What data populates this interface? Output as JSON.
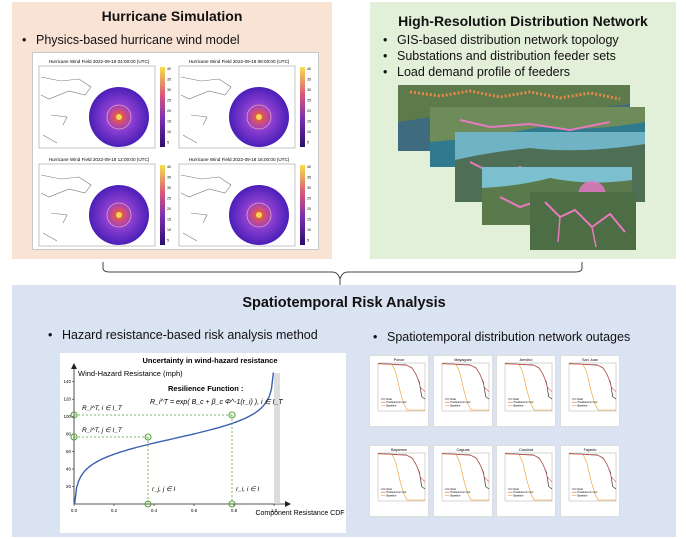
{
  "hurricane": {
    "title": "Hurricane Simulation",
    "bullet": "Physics-based hurricane wind model",
    "maps": [
      {
        "title": "Hurricane Wind Field 2022-09-18 04:00:00 (UTC)",
        "cbar_ticks": [
          "40",
          "35",
          "30",
          "25",
          "20",
          "15",
          "10",
          "5"
        ]
      },
      {
        "title": "Hurricane Wind Field 2022-09-18 08:00:00 (UTC)",
        "cbar_ticks": [
          "40",
          "35",
          "30",
          "25",
          "20",
          "15",
          "10",
          "5"
        ]
      },
      {
        "title": "Hurricane Wind Field 2022-09-18 12:00:00 (UTC)",
        "cbar_ticks": [
          "40",
          "35",
          "30",
          "25",
          "20",
          "15",
          "10",
          "5"
        ]
      },
      {
        "title": "Hurricane Wind Field 2022-09-18 16:00:00 (UTC)",
        "cbar_ticks": [
          "40",
          "35",
          "30",
          "25",
          "20",
          "15",
          "10",
          "5"
        ]
      }
    ]
  },
  "network": {
    "title": "High-Resolution Distribution Network",
    "bullets": [
      "GIS-based distribution network topology",
      "Substations and distribution feeder sets",
      "Load demand profile of feeders"
    ]
  },
  "risk": {
    "title": "Spatiotemporal Risk Analysis",
    "left_bullet": "Hazard resistance-based risk analysis method",
    "right_bullet": "Spatiotemporal distribution network outages",
    "curve_plot": {
      "title": "Uncertainty in wind-hazard resistance",
      "ylabel": "Wind-Hazard Resistance (mph)",
      "xlabel": "Component Resistance CDF",
      "xticks": [
        "0.0",
        "0.2",
        "0.4",
        "0.6",
        "0.8",
        "1.0"
      ],
      "yticks": [
        "20",
        "40",
        "60",
        "80",
        "100",
        "120",
        "140"
      ],
      "formula_title": "Resilience Function :",
      "formula": "R_i^T = exp( B_c + β_c Φ^-1(r_i) ), i ∈ I_T",
      "label_rt_upper": "R_i^T, i ∈ I_T",
      "label_rt_lower": "R_i^T, j ∈ I_T",
      "label_r_left": "r_j, j ∈ I",
      "label_r_right": "r_i, i ∈ I"
    },
    "outage_plots": [
      {
        "title": "Ponce",
        "legend": [
          "Real",
          "Predicted w/ Corr",
          "Baseline"
        ]
      },
      {
        "title": "Mayaguez",
        "legend": [
          "Real",
          "Predicted w/ Corr",
          "Baseline"
        ]
      },
      {
        "title": "Arecibo",
        "legend": [
          "Real",
          "Predicted w/ Corr",
          "Baseline"
        ]
      },
      {
        "title": "San Juan",
        "legend": [
          "Real",
          "Predicted w/ Corr",
          "Baseline"
        ]
      },
      {
        "title": "Bayamon",
        "legend": [
          "Real",
          "Predicted w/ Corr",
          "Baseline"
        ]
      },
      {
        "title": "Caguas",
        "legend": [
          "Real",
          "Predicted w/ Corr",
          "Baseline"
        ]
      },
      {
        "title": "Carolina",
        "legend": [
          "Real",
          "Predicted w/ Corr",
          "Baseline"
        ]
      },
      {
        "title": "Fajardo",
        "legend": [
          "Real",
          "Predicted w/ Corr",
          "Baseline"
        ]
      }
    ],
    "colors": {
      "real": "#333333",
      "predicted": "#e05b5b",
      "baseline": "#f0a542"
    }
  },
  "colors": {
    "hurricane_bg": "#f9e3d4",
    "network_bg": "#e2efd9",
    "risk_bg": "#dae3f1",
    "curve": "#3b5fb0",
    "marker": "#58a33c"
  }
}
